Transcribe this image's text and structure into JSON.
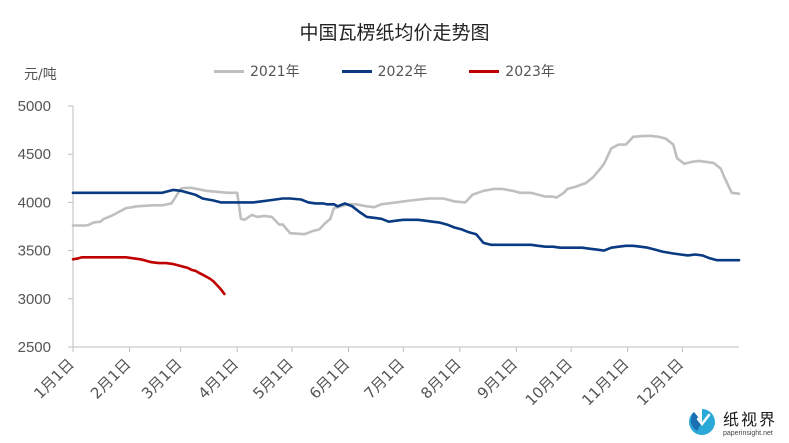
{
  "chart_data": {
    "type": "line",
    "title": "中国瓦楞纸均价走势图",
    "ylabel": "元/吨",
    "ylim": [
      2500,
      5000
    ],
    "yticks": [
      2500,
      3000,
      3500,
      4000,
      4500,
      5000
    ],
    "x_ticks": [
      "1月1日",
      "2月1日",
      "3月1日",
      "4月1日",
      "5月1日",
      "6月1日",
      "7月1日",
      "8月1日",
      "9月1日",
      "10月1日",
      "11月1日",
      "12月1日"
    ],
    "x_domain": [
      1,
      366
    ],
    "x_tick_days": [
      1,
      32,
      60,
      91,
      121,
      152,
      182,
      213,
      244,
      274,
      305,
      335
    ],
    "legend_position": "top-center",
    "grid": false,
    "series": [
      {
        "name": "2021年",
        "color": "#bfbfbf",
        "x": [
          1,
          8,
          10,
          12,
          16,
          18,
          22,
          24,
          30,
          36,
          45,
          50,
          55,
          60,
          62,
          66,
          74,
          80,
          86,
          91,
          93,
          95,
          99,
          102,
          106,
          110,
          114,
          116,
          120,
          128,
          132,
          136,
          139,
          142,
          144,
          148,
          152,
          156,
          162,
          166,
          170,
          178,
          186,
          196,
          204,
          210,
          216,
          220,
          226,
          232,
          236,
          242,
          246,
          252,
          256,
          260,
          264,
          266,
          270,
          272,
          276,
          282,
          286,
          290,
          292,
          296,
          300,
          302,
          304,
          308,
          314,
          318,
          322,
          326,
          330,
          332,
          336,
          340,
          344,
          352,
          356,
          358,
          362,
          366
        ],
        "y": [
          3760,
          3760,
          3770,
          3790,
          3800,
          3830,
          3860,
          3880,
          3940,
          3960,
          3970,
          3970,
          3990,
          4140,
          4150,
          4150,
          4120,
          4110,
          4100,
          4100,
          3830,
          3820,
          3870,
          3850,
          3860,
          3850,
          3770,
          3770,
          3680,
          3670,
          3700,
          3720,
          3780,
          3830,
          3940,
          3960,
          3980,
          3980,
          3960,
          3950,
          3980,
          4000,
          4020,
          4040,
          4040,
          4010,
          4000,
          4080,
          4120,
          4140,
          4140,
          4120,
          4100,
          4100,
          4080,
          4060,
          4060,
          4050,
          4100,
          4140,
          4160,
          4200,
          4260,
          4350,
          4400,
          4560,
          4600,
          4600,
          4600,
          4680,
          4690,
          4690,
          4680,
          4660,
          4600,
          4460,
          4400,
          4420,
          4430,
          4410,
          4350,
          4260,
          4100,
          4090
        ]
      },
      {
        "name": "2022年",
        "color": "#0a3a82",
        "x": [
          1,
          10,
          20,
          30,
          40,
          46,
          50,
          52,
          56,
          60,
          64,
          68,
          72,
          78,
          82,
          86,
          90,
          94,
          98,
          100,
          104,
          108,
          112,
          116,
          120,
          126,
          130,
          134,
          138,
          140,
          144,
          146,
          150,
          154,
          158,
          162,
          166,
          170,
          174,
          178,
          182,
          186,
          190,
          194,
          198,
          202,
          206,
          210,
          214,
          218,
          222,
          226,
          230,
          234,
          240,
          244,
          248,
          252,
          256,
          260,
          264,
          268,
          272,
          276,
          280,
          284,
          288,
          292,
          296,
          300,
          304,
          308,
          312,
          316,
          320,
          324,
          330,
          334,
          338,
          342,
          346,
          350,
          354,
          358,
          362,
          366
        ],
        "y": [
          4100,
          4100,
          4100,
          4100,
          4100,
          4100,
          4100,
          4110,
          4130,
          4120,
          4100,
          4080,
          4040,
          4020,
          4000,
          4000,
          4000,
          4000,
          4000,
          4000,
          4010,
          4020,
          4030,
          4040,
          4040,
          4030,
          4000,
          3990,
          3990,
          3980,
          3980,
          3960,
          3990,
          3960,
          3900,
          3850,
          3840,
          3830,
          3800,
          3810,
          3820,
          3820,
          3820,
          3810,
          3800,
          3790,
          3770,
          3740,
          3720,
          3690,
          3670,
          3580,
          3560,
          3560,
          3560,
          3560,
          3560,
          3560,
          3550,
          3540,
          3540,
          3530,
          3530,
          3530,
          3530,
          3520,
          3510,
          3500,
          3530,
          3540,
          3550,
          3550,
          3540,
          3530,
          3510,
          3490,
          3470,
          3460,
          3450,
          3460,
          3450,
          3420,
          3400,
          3400,
          3400,
          3400
        ]
      },
      {
        "name": "2023年",
        "color": "#c00000",
        "x": [
          1,
          4,
          6,
          10,
          14,
          18,
          22,
          26,
          30,
          34,
          38,
          40,
          44,
          48,
          52,
          56,
          60,
          62,
          64,
          66,
          68,
          70,
          72,
          74,
          76,
          78,
          80,
          82,
          84
        ],
        "y": [
          3410,
          3420,
          3430,
          3430,
          3430,
          3430,
          3430,
          3430,
          3430,
          3420,
          3410,
          3400,
          3380,
          3370,
          3370,
          3360,
          3340,
          3330,
          3320,
          3300,
          3290,
          3270,
          3250,
          3230,
          3210,
          3180,
          3140,
          3100,
          3050
        ]
      }
    ]
  },
  "watermark": {
    "brand_cn": "纸视界",
    "url": "paperinsight.net",
    "logo_icon": "paperinsight-logo-icon"
  }
}
